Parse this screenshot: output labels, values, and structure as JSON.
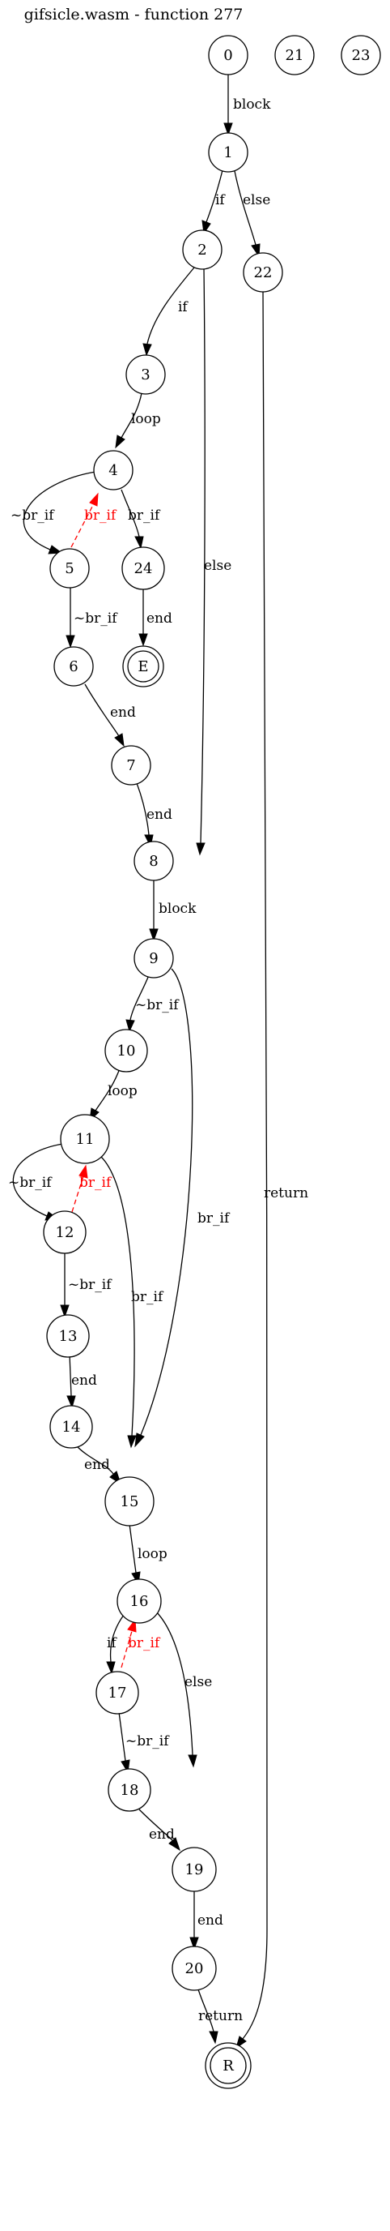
{
  "title": "gifsicle.wasm - function 277",
  "colors": {
    "normal": "#000000",
    "back_edge": "#ff0000"
  },
  "nodes": [
    {
      "id": "n0",
      "label": "0"
    },
    {
      "id": "n21",
      "label": "21"
    },
    {
      "id": "n23",
      "label": "23"
    },
    {
      "id": "n1",
      "label": "1"
    },
    {
      "id": "n2",
      "label": "2"
    },
    {
      "id": "n22",
      "label": "22"
    },
    {
      "id": "n3",
      "label": "3"
    },
    {
      "id": "n4",
      "label": "4"
    },
    {
      "id": "n5",
      "label": "5"
    },
    {
      "id": "n24",
      "label": "24"
    },
    {
      "id": "nE",
      "label": "E"
    },
    {
      "id": "n6",
      "label": "6"
    },
    {
      "id": "n7",
      "label": "7"
    },
    {
      "id": "n8",
      "label": "8"
    },
    {
      "id": "n9",
      "label": "9"
    },
    {
      "id": "n10",
      "label": "10"
    },
    {
      "id": "n11",
      "label": "11"
    },
    {
      "id": "n12",
      "label": "12"
    },
    {
      "id": "n13",
      "label": "13"
    },
    {
      "id": "n14",
      "label": "14"
    },
    {
      "id": "n15",
      "label": "15"
    },
    {
      "id": "n16",
      "label": "16"
    },
    {
      "id": "n17",
      "label": "17"
    },
    {
      "id": "n18",
      "label": "18"
    },
    {
      "id": "n19",
      "label": "19"
    },
    {
      "id": "n20",
      "label": "20"
    },
    {
      "id": "nR",
      "label": "R"
    }
  ],
  "edges": [
    {
      "from": "0",
      "to": "1",
      "label": "block"
    },
    {
      "from": "1",
      "to": "2",
      "label": "if"
    },
    {
      "from": "1",
      "to": "22",
      "label": "else"
    },
    {
      "from": "2",
      "to": "3",
      "label": "if"
    },
    {
      "from": "2",
      "to": "8",
      "label": "else"
    },
    {
      "from": "3",
      "to": "4",
      "label": "loop"
    },
    {
      "from": "4",
      "to": "5",
      "label": "~br_if"
    },
    {
      "from": "5",
      "to": "4",
      "label": "br_if",
      "back": true
    },
    {
      "from": "4",
      "to": "24",
      "label": "br_if"
    },
    {
      "from": "24",
      "to": "E",
      "label": "end"
    },
    {
      "from": "5",
      "to": "6",
      "label": "~br_if"
    },
    {
      "from": "6",
      "to": "7",
      "label": "end"
    },
    {
      "from": "7",
      "to": "8",
      "label": "end"
    },
    {
      "from": "8",
      "to": "9",
      "label": "block"
    },
    {
      "from": "9",
      "to": "10",
      "label": "~br_if"
    },
    {
      "from": "9",
      "to": "15",
      "label": "br_if"
    },
    {
      "from": "10",
      "to": "11",
      "label": "loop"
    },
    {
      "from": "11",
      "to": "12",
      "label": "~br_if"
    },
    {
      "from": "12",
      "to": "11",
      "label": "br_if",
      "back": true
    },
    {
      "from": "11",
      "to": "15",
      "label": "br_if"
    },
    {
      "from": "12",
      "to": "13",
      "label": "~br_if"
    },
    {
      "from": "13",
      "to": "14",
      "label": "end"
    },
    {
      "from": "14",
      "to": "15",
      "label": "end"
    },
    {
      "from": "15",
      "to": "16",
      "label": "loop"
    },
    {
      "from": "16",
      "to": "17",
      "label": "if"
    },
    {
      "from": "17",
      "to": "16",
      "label": "br_if",
      "back": true
    },
    {
      "from": "16",
      "to": "19",
      "label": "else"
    },
    {
      "from": "17",
      "to": "18",
      "label": "~br_if"
    },
    {
      "from": "18",
      "to": "19",
      "label": "end"
    },
    {
      "from": "19",
      "to": "20",
      "label": "end"
    },
    {
      "from": "20",
      "to": "R",
      "label": "return"
    },
    {
      "from": "22",
      "to": "R",
      "label": "return"
    }
  ]
}
